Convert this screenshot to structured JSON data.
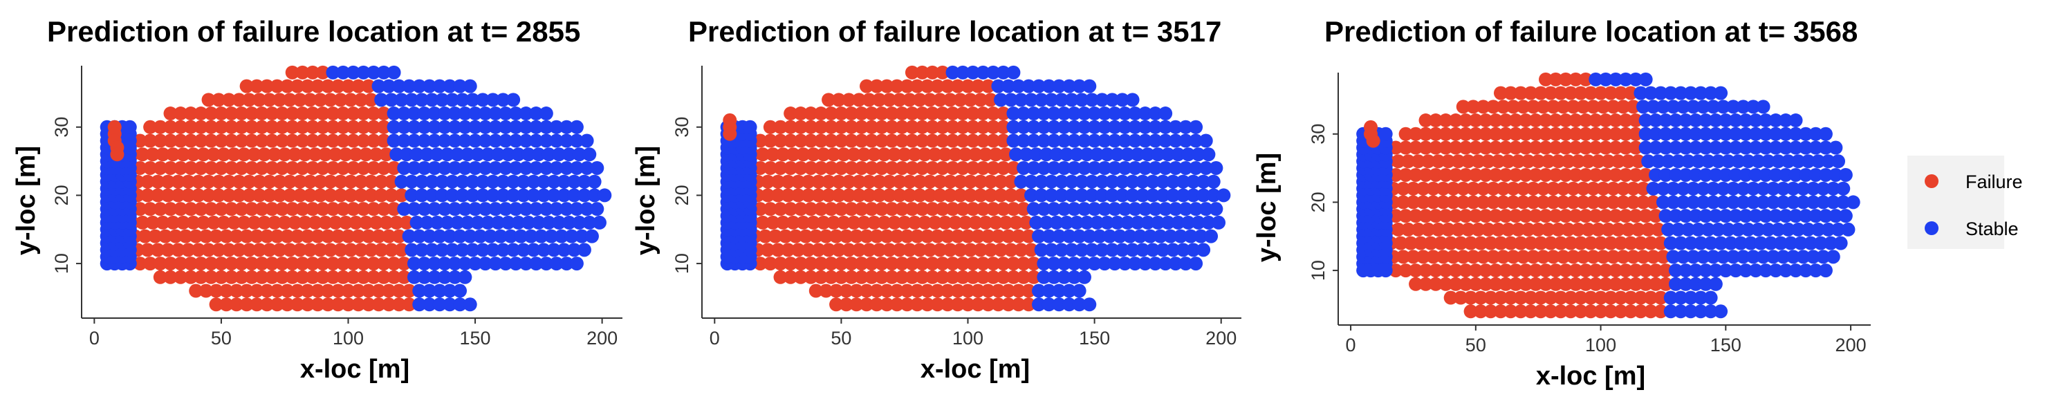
{
  "chart_data": [
    {
      "type": "scatter",
      "title": "Prediction of failure location at t=  2855",
      "xlabel": "x-loc [m]",
      "ylabel": "y-loc [m]",
      "xlim": [
        -5,
        208
      ],
      "ylim": [
        2,
        39
      ],
      "xticks": [
        0,
        50,
        100,
        150,
        200
      ],
      "yticks": [
        10,
        20,
        30
      ],
      "grid": false,
      "rows": [
        {
          "y": 4,
          "x0": 48,
          "x1": 150,
          "b": 127
        },
        {
          "y": 6,
          "x0": 40,
          "x1": 147,
          "b": 126
        },
        {
          "y": 8,
          "x0": 26,
          "x1": 146,
          "b": 126
        },
        {
          "y": 10,
          "x0": 18,
          "x1": 190,
          "b": 125
        },
        {
          "y": 12,
          "x0": 17,
          "x1": 196,
          "b": 125
        },
        {
          "y": 14,
          "x0": 16,
          "x1": 199,
          "b": 124
        },
        {
          "y": 16,
          "x0": 15,
          "x1": 200,
          "b": 124
        },
        {
          "y": 18,
          "x0": 14,
          "x1": 201,
          "b": 122
        },
        {
          "y": 20,
          "x0": 13,
          "x1": 201,
          "b": 122
        },
        {
          "y": 22,
          "x0": 13,
          "x1": 200,
          "b": 120
        },
        {
          "y": 24,
          "x0": 14,
          "x1": 199,
          "b": 119
        },
        {
          "y": 26,
          "x0": 15,
          "x1": 198,
          "b": 118
        },
        {
          "y": 28,
          "x0": 18,
          "x1": 194,
          "b": 117
        },
        {
          "y": 30,
          "x0": 22,
          "x1": 190,
          "b": 116
        },
        {
          "y": 32,
          "x0": 30,
          "x1": 181,
          "b": 115
        },
        {
          "y": 34,
          "x0": 45,
          "x1": 167,
          "b": 113
        },
        {
          "y": 36,
          "x0": 60,
          "x1": 150,
          "b": 112
        },
        {
          "y": 38,
          "x0": 78,
          "x1": 118,
          "b": 93
        }
      ],
      "left_stable": {
        "x0": 5,
        "x1": 16,
        "y0": 10,
        "y1": 30
      },
      "extra_failure": [
        [
          8,
          30
        ],
        [
          8,
          29
        ],
        [
          8,
          28
        ],
        [
          9,
          27
        ],
        [
          9,
          26
        ]
      ]
    },
    {
      "type": "scatter",
      "title": "Prediction of failure location at t=  3517",
      "xlabel": "x-loc [m]",
      "ylabel": "y-loc [m]",
      "xlim": [
        -5,
        208
      ],
      "ylim": [
        2,
        39
      ],
      "xticks": [
        0,
        50,
        100,
        150,
        200
      ],
      "yticks": [
        10,
        20,
        30
      ],
      "grid": false,
      "rows": [
        {
          "y": 4,
          "x0": 48,
          "x1": 150,
          "b": 128
        },
        {
          "y": 6,
          "x0": 40,
          "x1": 147,
          "b": 127
        },
        {
          "y": 8,
          "x0": 26,
          "x1": 146,
          "b": 127
        },
        {
          "y": 10,
          "x0": 18,
          "x1": 190,
          "b": 127
        },
        {
          "y": 12,
          "x0": 17,
          "x1": 196,
          "b": 126
        },
        {
          "y": 14,
          "x0": 16,
          "x1": 199,
          "b": 125
        },
        {
          "y": 16,
          "x0": 15,
          "x1": 200,
          "b": 124
        },
        {
          "y": 18,
          "x0": 14,
          "x1": 201,
          "b": 123
        },
        {
          "y": 20,
          "x0": 13,
          "x1": 201,
          "b": 122
        },
        {
          "y": 22,
          "x0": 13,
          "x1": 200,
          "b": 120
        },
        {
          "y": 24,
          "x0": 14,
          "x1": 199,
          "b": 119
        },
        {
          "y": 26,
          "x0": 15,
          "x1": 198,
          "b": 118
        },
        {
          "y": 28,
          "x0": 18,
          "x1": 194,
          "b": 117
        },
        {
          "y": 30,
          "x0": 22,
          "x1": 190,
          "b": 116
        },
        {
          "y": 32,
          "x0": 30,
          "x1": 181,
          "b": 115
        },
        {
          "y": 34,
          "x0": 45,
          "x1": 167,
          "b": 113
        },
        {
          "y": 36,
          "x0": 60,
          "x1": 150,
          "b": 112
        },
        {
          "y": 38,
          "x0": 78,
          "x1": 118,
          "b": 93
        }
      ],
      "left_stable": {
        "x0": 5,
        "x1": 16,
        "y0": 10,
        "y1": 30
      },
      "extra_failure": [
        [
          6,
          31
        ],
        [
          6,
          30
        ],
        [
          6,
          29
        ]
      ]
    },
    {
      "type": "scatter",
      "title": "Prediction of failure location at t=  3568",
      "xlabel": "x-loc [m]",
      "ylabel": "y-loc [m]",
      "xlim": [
        -5,
        208
      ],
      "ylim": [
        2,
        39
      ],
      "xticks": [
        0,
        50,
        100,
        150,
        200
      ],
      "yticks": [
        10,
        20,
        30
      ],
      "grid": false,
      "rows": [
        {
          "y": 4,
          "x0": 48,
          "x1": 150,
          "b": 128
        },
        {
          "y": 6,
          "x0": 40,
          "x1": 147,
          "b": 128
        },
        {
          "y": 8,
          "x0": 26,
          "x1": 146,
          "b": 127
        },
        {
          "y": 10,
          "x0": 18,
          "x1": 190,
          "b": 127
        },
        {
          "y": 12,
          "x0": 17,
          "x1": 196,
          "b": 126
        },
        {
          "y": 14,
          "x0": 16,
          "x1": 199,
          "b": 125
        },
        {
          "y": 16,
          "x0": 15,
          "x1": 200,
          "b": 125
        },
        {
          "y": 18,
          "x0": 14,
          "x1": 201,
          "b": 124
        },
        {
          "y": 20,
          "x0": 13,
          "x1": 201,
          "b": 123
        },
        {
          "y": 22,
          "x0": 13,
          "x1": 200,
          "b": 121
        },
        {
          "y": 24,
          "x0": 14,
          "x1": 199,
          "b": 120
        },
        {
          "y": 26,
          "x0": 15,
          "x1": 198,
          "b": 119
        },
        {
          "y": 28,
          "x0": 18,
          "x1": 194,
          "b": 118
        },
        {
          "y": 30,
          "x0": 22,
          "x1": 190,
          "b": 117
        },
        {
          "y": 32,
          "x0": 30,
          "x1": 181,
          "b": 116
        },
        {
          "y": 34,
          "x0": 45,
          "x1": 167,
          "b": 115
        },
        {
          "y": 36,
          "x0": 60,
          "x1": 150,
          "b": 114
        },
        {
          "y": 38,
          "x0": 78,
          "x1": 118,
          "b": 95
        }
      ],
      "left_stable": {
        "x0": 5,
        "x1": 16,
        "y0": 10,
        "y1": 30
      },
      "extra_failure": [
        [
          8,
          31
        ],
        [
          8,
          30
        ],
        [
          9,
          29
        ]
      ]
    }
  ],
  "legend": {
    "placement": "right",
    "items": [
      {
        "label": "Failure",
        "color": "#e8412a"
      },
      {
        "label": "Stable",
        "color": "#1f3ff0"
      }
    ]
  },
  "colors": {
    "failure": "#e8412a",
    "stable": "#1f3ff0",
    "legend_bg": "#f2f2f2",
    "axis": "#333333"
  }
}
